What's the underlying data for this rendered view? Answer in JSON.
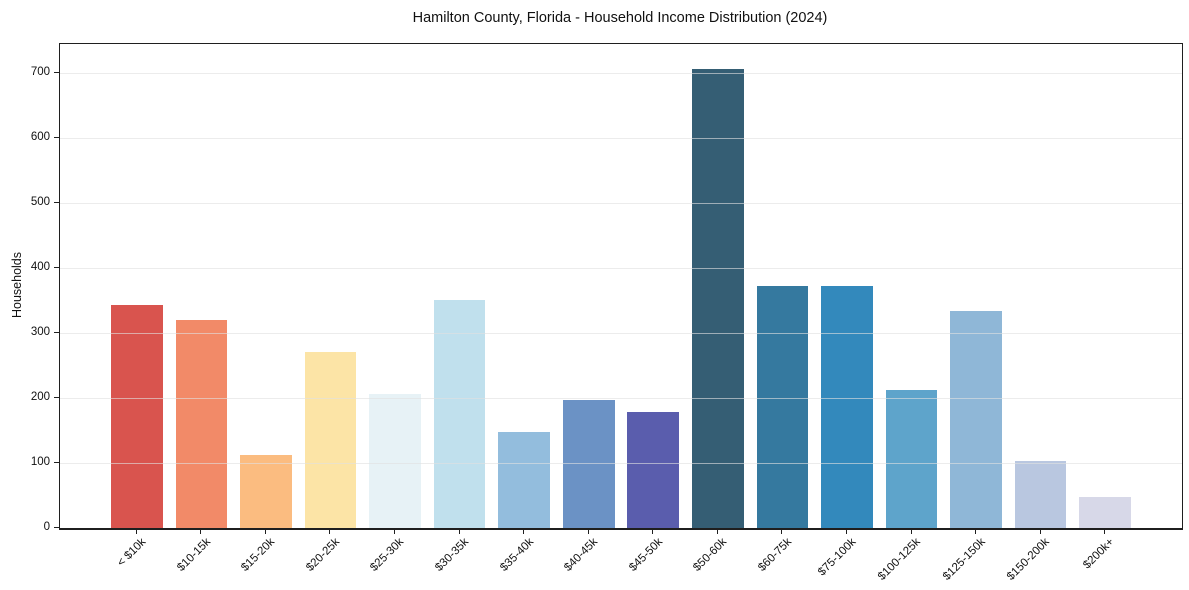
{
  "chart_data": {
    "type": "bar",
    "title": "Hamilton County, Florida - Household Income Distribution (2024)",
    "xlabel": "",
    "ylabel": "Households",
    "categories": [
      "< $10k",
      "$10-15k",
      "$15-20k",
      "$20-25k",
      "$25-30k",
      "$30-35k",
      "$35-40k",
      "$40-45k",
      "$45-50k",
      "$50-60k",
      "$60-75k",
      "$75-100k",
      "$100-125k",
      "$125-150k",
      "$150-200k",
      "$200k+"
    ],
    "values": [
      343,
      320,
      112,
      270,
      206,
      351,
      148,
      197,
      178,
      705,
      372,
      372,
      212,
      333,
      103,
      48
    ],
    "colors": [
      "#d9544e",
      "#f28a68",
      "#fbbc80",
      "#fce4a6",
      "#e7f2f6",
      "#c0e0ed",
      "#93bddd",
      "#6b92c5",
      "#5a5dad",
      "#355e74",
      "#35799f",
      "#3389bc",
      "#5ea4cb",
      "#8fb7d7",
      "#b9c7e0",
      "#d7d8e8"
    ],
    "yticks": [
      0,
      100,
      200,
      300,
      400,
      500,
      600,
      700
    ],
    "ylim": [
      0,
      744
    ],
    "xlim": [
      -1.19,
      16.19
    ],
    "bar_width_units": 0.8,
    "grid": "horizontal-above-bars",
    "legend": "none",
    "axis_colors": {
      "spine": "#1f1f1f",
      "grid": "#ececec",
      "text": "#111111"
    }
  }
}
